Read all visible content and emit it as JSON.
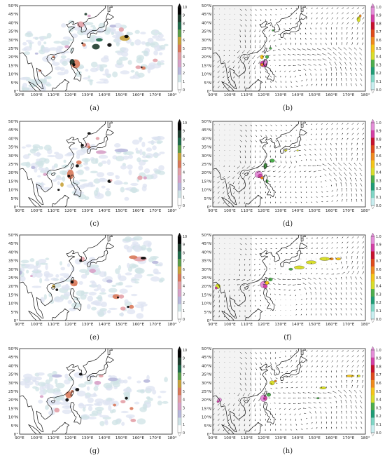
{
  "figure": {
    "panels": [
      {
        "id": "a",
        "label": "(a)",
        "kind": "precip"
      },
      {
        "id": "b",
        "label": "(b)",
        "kind": "wind"
      },
      {
        "id": "c",
        "label": "(c)",
        "kind": "precip"
      },
      {
        "id": "d",
        "label": "(d)",
        "kind": "wind"
      },
      {
        "id": "e",
        "label": "(e)",
        "kind": "precip"
      },
      {
        "id": "f",
        "label": "(f)",
        "kind": "wind"
      },
      {
        "id": "g",
        "label": "(g)",
        "kind": "precip"
      },
      {
        "id": "h",
        "label": "(h)",
        "kind": "wind"
      }
    ],
    "lon_ticks": [
      "90°E",
      "100°E",
      "110°E",
      "120°E",
      "130°E",
      "140°E",
      "150°E",
      "160°E",
      "170°E",
      "180°"
    ],
    "lat_ticks": [
      "50°N",
      "45°N",
      "40°N",
      "35°N",
      "30°N",
      "25°N",
      "20°N",
      "15°N",
      "10°N",
      "5°N",
      "0°"
    ],
    "precip_colorbar": {
      "ticks": [
        "10",
        "9",
        "8",
        "7",
        "6",
        "5",
        "4",
        "3",
        "2",
        "1",
        "0"
      ],
      "colors": [
        "#000000",
        "#1e3b2c",
        "#1f6a4a",
        "#5b9e4a",
        "#c7a23a",
        "#d9795a",
        "#e3a0a7",
        "#d8a2c8",
        "#b8b8dc",
        "#cfe3e6",
        "#ffffff"
      ]
    },
    "wind_colorbar": {
      "ticks": [
        "1.0",
        "0.9",
        "0.8",
        "0.7",
        "0.6",
        "0.5",
        "0.4",
        "0.3",
        "0.2",
        "0.1",
        "0.0"
      ],
      "colors": [
        "#e58ed9",
        "#d43fa6",
        "#c8102e",
        "#e04a1b",
        "#f08a1d",
        "#f5c518",
        "#d8de2a",
        "#4cae4c",
        "#1f9d76",
        "#7fd6c6",
        "#c8eef0"
      ]
    }
  }
}
